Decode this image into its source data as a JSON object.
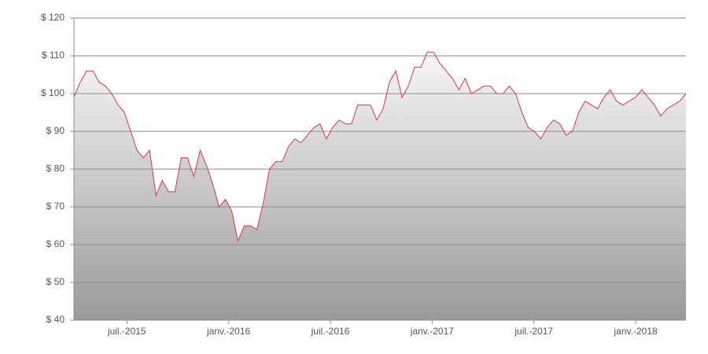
{
  "chart_data": {
    "type": "area",
    "x": [
      2015.24,
      2015.271,
      2015.302,
      2015.333,
      2015.364,
      2015.395,
      2015.426,
      2015.457,
      2015.488,
      2015.519,
      2015.55,
      2015.581,
      2015.612,
      2015.643,
      2015.674,
      2015.705,
      2015.736,
      2015.767,
      2015.798,
      2015.829,
      2015.86,
      2015.891,
      2015.922,
      2015.953,
      2015.984,
      2016.015,
      2016.046,
      2016.077,
      2016.108,
      2016.139,
      2016.17,
      2016.201,
      2016.232,
      2016.263,
      2016.294,
      2016.325,
      2016.356,
      2016.387,
      2016.418,
      2016.449,
      2016.48,
      2016.511,
      2016.542,
      2016.573,
      2016.604,
      2016.635,
      2016.666,
      2016.697,
      2016.728,
      2016.759,
      2016.79,
      2016.821,
      2016.852,
      2016.883,
      2016.914,
      2016.945,
      2016.976,
      2017.007,
      2017.038,
      2017.069,
      2017.1,
      2017.131,
      2017.162,
      2017.193,
      2017.224,
      2017.255,
      2017.286,
      2017.317,
      2017.348,
      2017.379,
      2017.41,
      2017.441,
      2017.472,
      2017.503,
      2017.534,
      2017.565,
      2017.596,
      2017.627,
      2017.658,
      2017.689,
      2017.72,
      2017.751,
      2017.782,
      2017.813,
      2017.844,
      2017.875,
      2017.906,
      2017.937,
      2017.968,
      2017.999,
      2018.03,
      2018.061,
      2018.092,
      2018.123,
      2018.154,
      2018.185,
      2018.216,
      2018.247
    ],
    "values": [
      99,
      103,
      106,
      106,
      103,
      102,
      100,
      97,
      95,
      90,
      85,
      83,
      85,
      73,
      77,
      74,
      74,
      83,
      83,
      78,
      85,
      81,
      76,
      70,
      72,
      69,
      61,
      65,
      65,
      64,
      71,
      80,
      82,
      82,
      86,
      88,
      87,
      89,
      91,
      92,
      88,
      91,
      93,
      92,
      92,
      97,
      97,
      97,
      93,
      96,
      103,
      106,
      99,
      102,
      107,
      107,
      111,
      111,
      108,
      106,
      104,
      101,
      104,
      100,
      101,
      102,
      102,
      100,
      100,
      102,
      100,
      95,
      91,
      90,
      88,
      91,
      93,
      92,
      89,
      90,
      95,
      98,
      97,
      96,
      99,
      101,
      98,
      97,
      98,
      99,
      101,
      99,
      97,
      94,
      96,
      97,
      98,
      100
    ],
    "color": "#d9363e",
    "fill_top": "#f7f7f7",
    "fill_bottom": "#9a9a9a",
    "xlim": [
      2015.24,
      2018.247
    ],
    "xticks": [
      {
        "value": 2015.5,
        "label": "juil.-2015"
      },
      {
        "value": 2016.0,
        "label": "janv.-2016"
      },
      {
        "value": 2016.5,
        "label": "juil.-2016"
      },
      {
        "value": 2017.0,
        "label": "janv.-2017"
      },
      {
        "value": 2017.5,
        "label": "juil.-2017"
      },
      {
        "value": 2018.0,
        "label": "janv.-2018"
      }
    ],
    "ylim": [
      40,
      120
    ],
    "yticks": [
      {
        "value": 40,
        "label": "$ 40"
      },
      {
        "value": 50,
        "label": "$ 50"
      },
      {
        "value": 60,
        "label": "$ 60"
      },
      {
        "value": 70,
        "label": "$ 70"
      },
      {
        "value": 80,
        "label": "$ 80"
      },
      {
        "value": 90,
        "label": "$ 90"
      },
      {
        "value": 100,
        "label": "$ 100"
      },
      {
        "value": 110,
        "label": "$ 110"
      },
      {
        "value": 120,
        "label": "$ 120"
      }
    ],
    "grid": true
  }
}
